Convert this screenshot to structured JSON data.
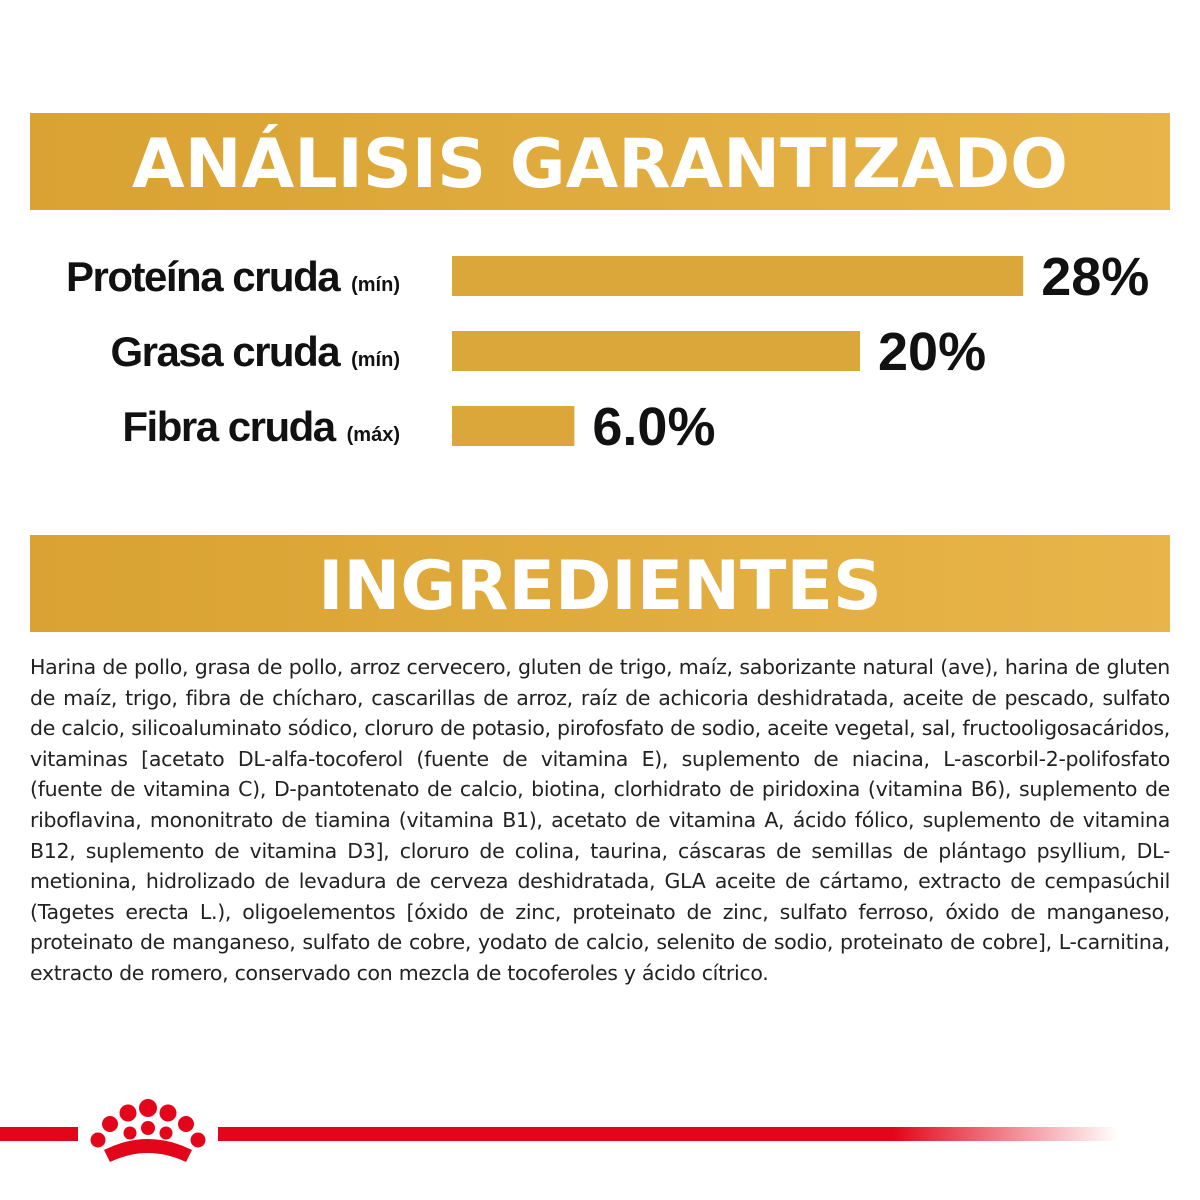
{
  "header": {
    "title": "ANÁLISIS GARANTIZADO"
  },
  "chart_data": {
    "type": "bar",
    "categories": [
      "Proteína cruda",
      "Grasa cruda",
      "Fibra cruda"
    ],
    "qualifiers": [
      "(mín)",
      "(mín)",
      "(máx)"
    ],
    "values": [
      28,
      20,
      6.0
    ],
    "value_labels": [
      "28%",
      "20%",
      "6.0%"
    ],
    "color": "#dca73a"
  },
  "ingredients": {
    "title": "INGREDIENTES",
    "text": "Harina de pollo, grasa de pollo, arroz cervecero, gluten de trigo, maíz, saborizante natural (ave), harina de gluten de maíz, trigo, fibra de chícharo, cascarillas de arroz, raíz de achicoria deshidratada, aceite de pescado, sulfato de calcio, silicoaluminato sódico, cloruro de potasio, pirofosfato de sodio, aceite vegetal, sal, fructooligosacáridos, vitaminas [acetato DL-alfa-tocoferol (fuente de vitamina E), suplemento de niacina, L-ascorbil-2-polifosfato (fuente de vitamina C), D-pantotenato de calcio, biotina, clorhidrato de piridoxina (vitamina B6), suplemento de riboflavina, mononitrato de tiamina (vitamina B1), acetato de vitamina A, ácido fólico, suplemento de vitamina B12, suplemento de vitamina D3], cloruro de colina, taurina, cáscaras de semillas de plántago psyllium, DL-metionina, hidrolizado de levadura de cerveza deshidratada, GLA aceite de cártamo, extracto de cempasúchil (Tagetes erecta L.), oligoelementos [óxido de zinc, proteinato de zinc, sulfato ferroso, óxido de manganeso, proteinato de manganeso, sulfato de cobre, yodato de calcio, selenito de sodio, proteinato de cobre], L-carnitina, extracto de romero, conservado con mezcla de tocoferoles y ácido cítrico."
  }
}
